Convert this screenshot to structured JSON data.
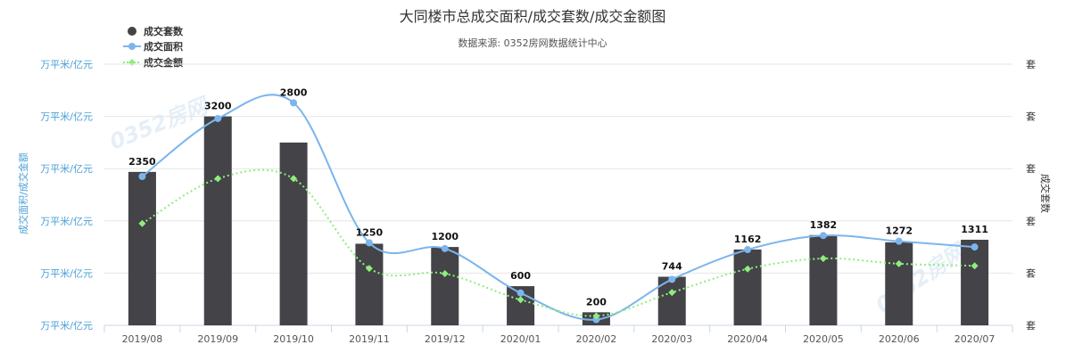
{
  "chart_data": {
    "type": "bar",
    "title": "大同楼市总成交面积/成交套数/成交金额图",
    "subtitle": "数据来源: 0352房网数据统计中心",
    "categories": [
      "2019/08",
      "2019/09",
      "2019/10",
      "2019/11",
      "2019/12",
      "2020/01",
      "2020/02",
      "2020/03",
      "2020/04",
      "2020/05",
      "2020/06",
      "2020/07"
    ],
    "series": [
      {
        "name": "成交套数",
        "type": "bar",
        "color": "#434348",
        "axis": "right",
        "values": [
          2350,
          3200,
          2800,
          1250,
          1200,
          600,
          200,
          744,
          1162,
          1382,
          1272,
          1311
        ]
      },
      {
        "name": "成交面积",
        "type": "line",
        "color": "#7cb5ec",
        "axis": "left",
        "values": [
          28.5,
          39.6,
          42.6,
          15.8,
          14.7,
          6.2,
          1.1,
          8.8,
          14.5,
          17.2,
          16.1,
          15.0
        ]
      },
      {
        "name": "成交金额",
        "type": "line",
        "color": "#90ed7d",
        "axis": "left",
        "dashed": true,
        "values": [
          19.5,
          28.1,
          28.1,
          10.9,
          9.9,
          4.9,
          1.8,
          6.3,
          10.8,
          12.8,
          11.8,
          11.4
        ]
      }
    ],
    "y_left": {
      "label": "成交面积/成交金额",
      "tick_labels": [
        "万平米/亿元",
        "万平米/亿元",
        "万平米/亿元",
        "万平米/亿元",
        "万平米/亿元",
        "万平米/亿元"
      ],
      "range": [
        0,
        50
      ]
    },
    "y_right": {
      "label": "成交套数",
      "tick_labels": [
        "套",
        "套",
        "套",
        "套",
        "套",
        "套"
      ],
      "range": [
        0,
        4000
      ]
    },
    "grid": true,
    "legend": "top-left",
    "watermark": "0352房网"
  }
}
